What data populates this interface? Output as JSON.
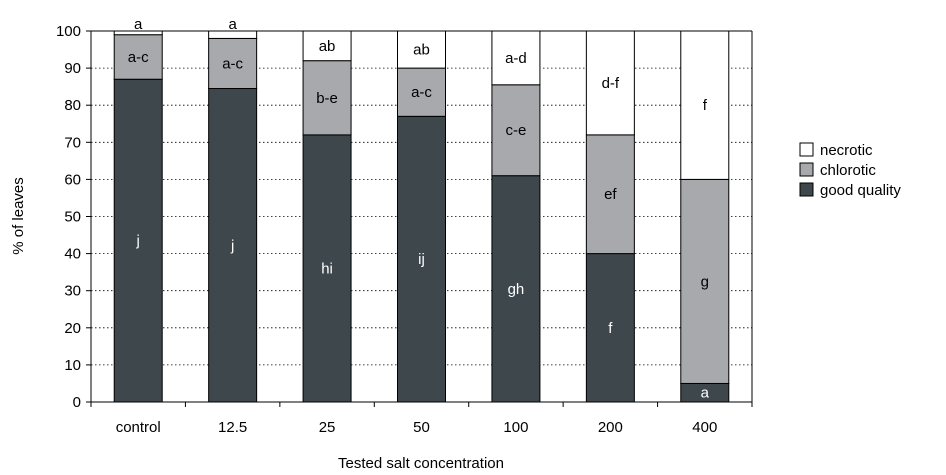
{
  "chart_data": {
    "type": "bar",
    "stacked": true,
    "xlabel": "Tested salt concentration",
    "ylabel": "% of leaves",
    "ylim": [
      0,
      100
    ],
    "yticks": [
      0,
      10,
      20,
      30,
      40,
      50,
      60,
      70,
      80,
      90,
      100
    ],
    "grid": "horizontal dotted",
    "legend_position": "right",
    "categories": [
      "control",
      "12.5",
      "25",
      "50",
      "100",
      "200",
      "400"
    ],
    "series": [
      {
        "name": "good quality",
        "color": "#3d474c",
        "text_color": "#ffffff",
        "values": [
          87,
          84.5,
          72,
          77,
          61,
          40,
          5
        ],
        "labels": [
          "j",
          "j",
          "hi",
          "ij",
          "gh",
          "f",
          "a"
        ]
      },
      {
        "name": "chlorotic",
        "color": "#a7a9ac",
        "text_color": "#000000",
        "values": [
          12,
          13.5,
          20,
          13,
          24.5,
          32,
          55
        ],
        "labels": [
          "a-c",
          "a-c",
          "b-e",
          "a-c",
          "c-e",
          "ef",
          "g"
        ]
      },
      {
        "name": "necrotic",
        "color": "#ffffff",
        "text_color": "#000000",
        "values": [
          1,
          2,
          8,
          10,
          14.5,
          28,
          40
        ],
        "labels": [
          "a",
          "a",
          "ab",
          "ab",
          "a-d",
          "d-f",
          "f"
        ]
      }
    ],
    "legend_order": [
      "necrotic",
      "chlorotic",
      "good quality"
    ]
  }
}
